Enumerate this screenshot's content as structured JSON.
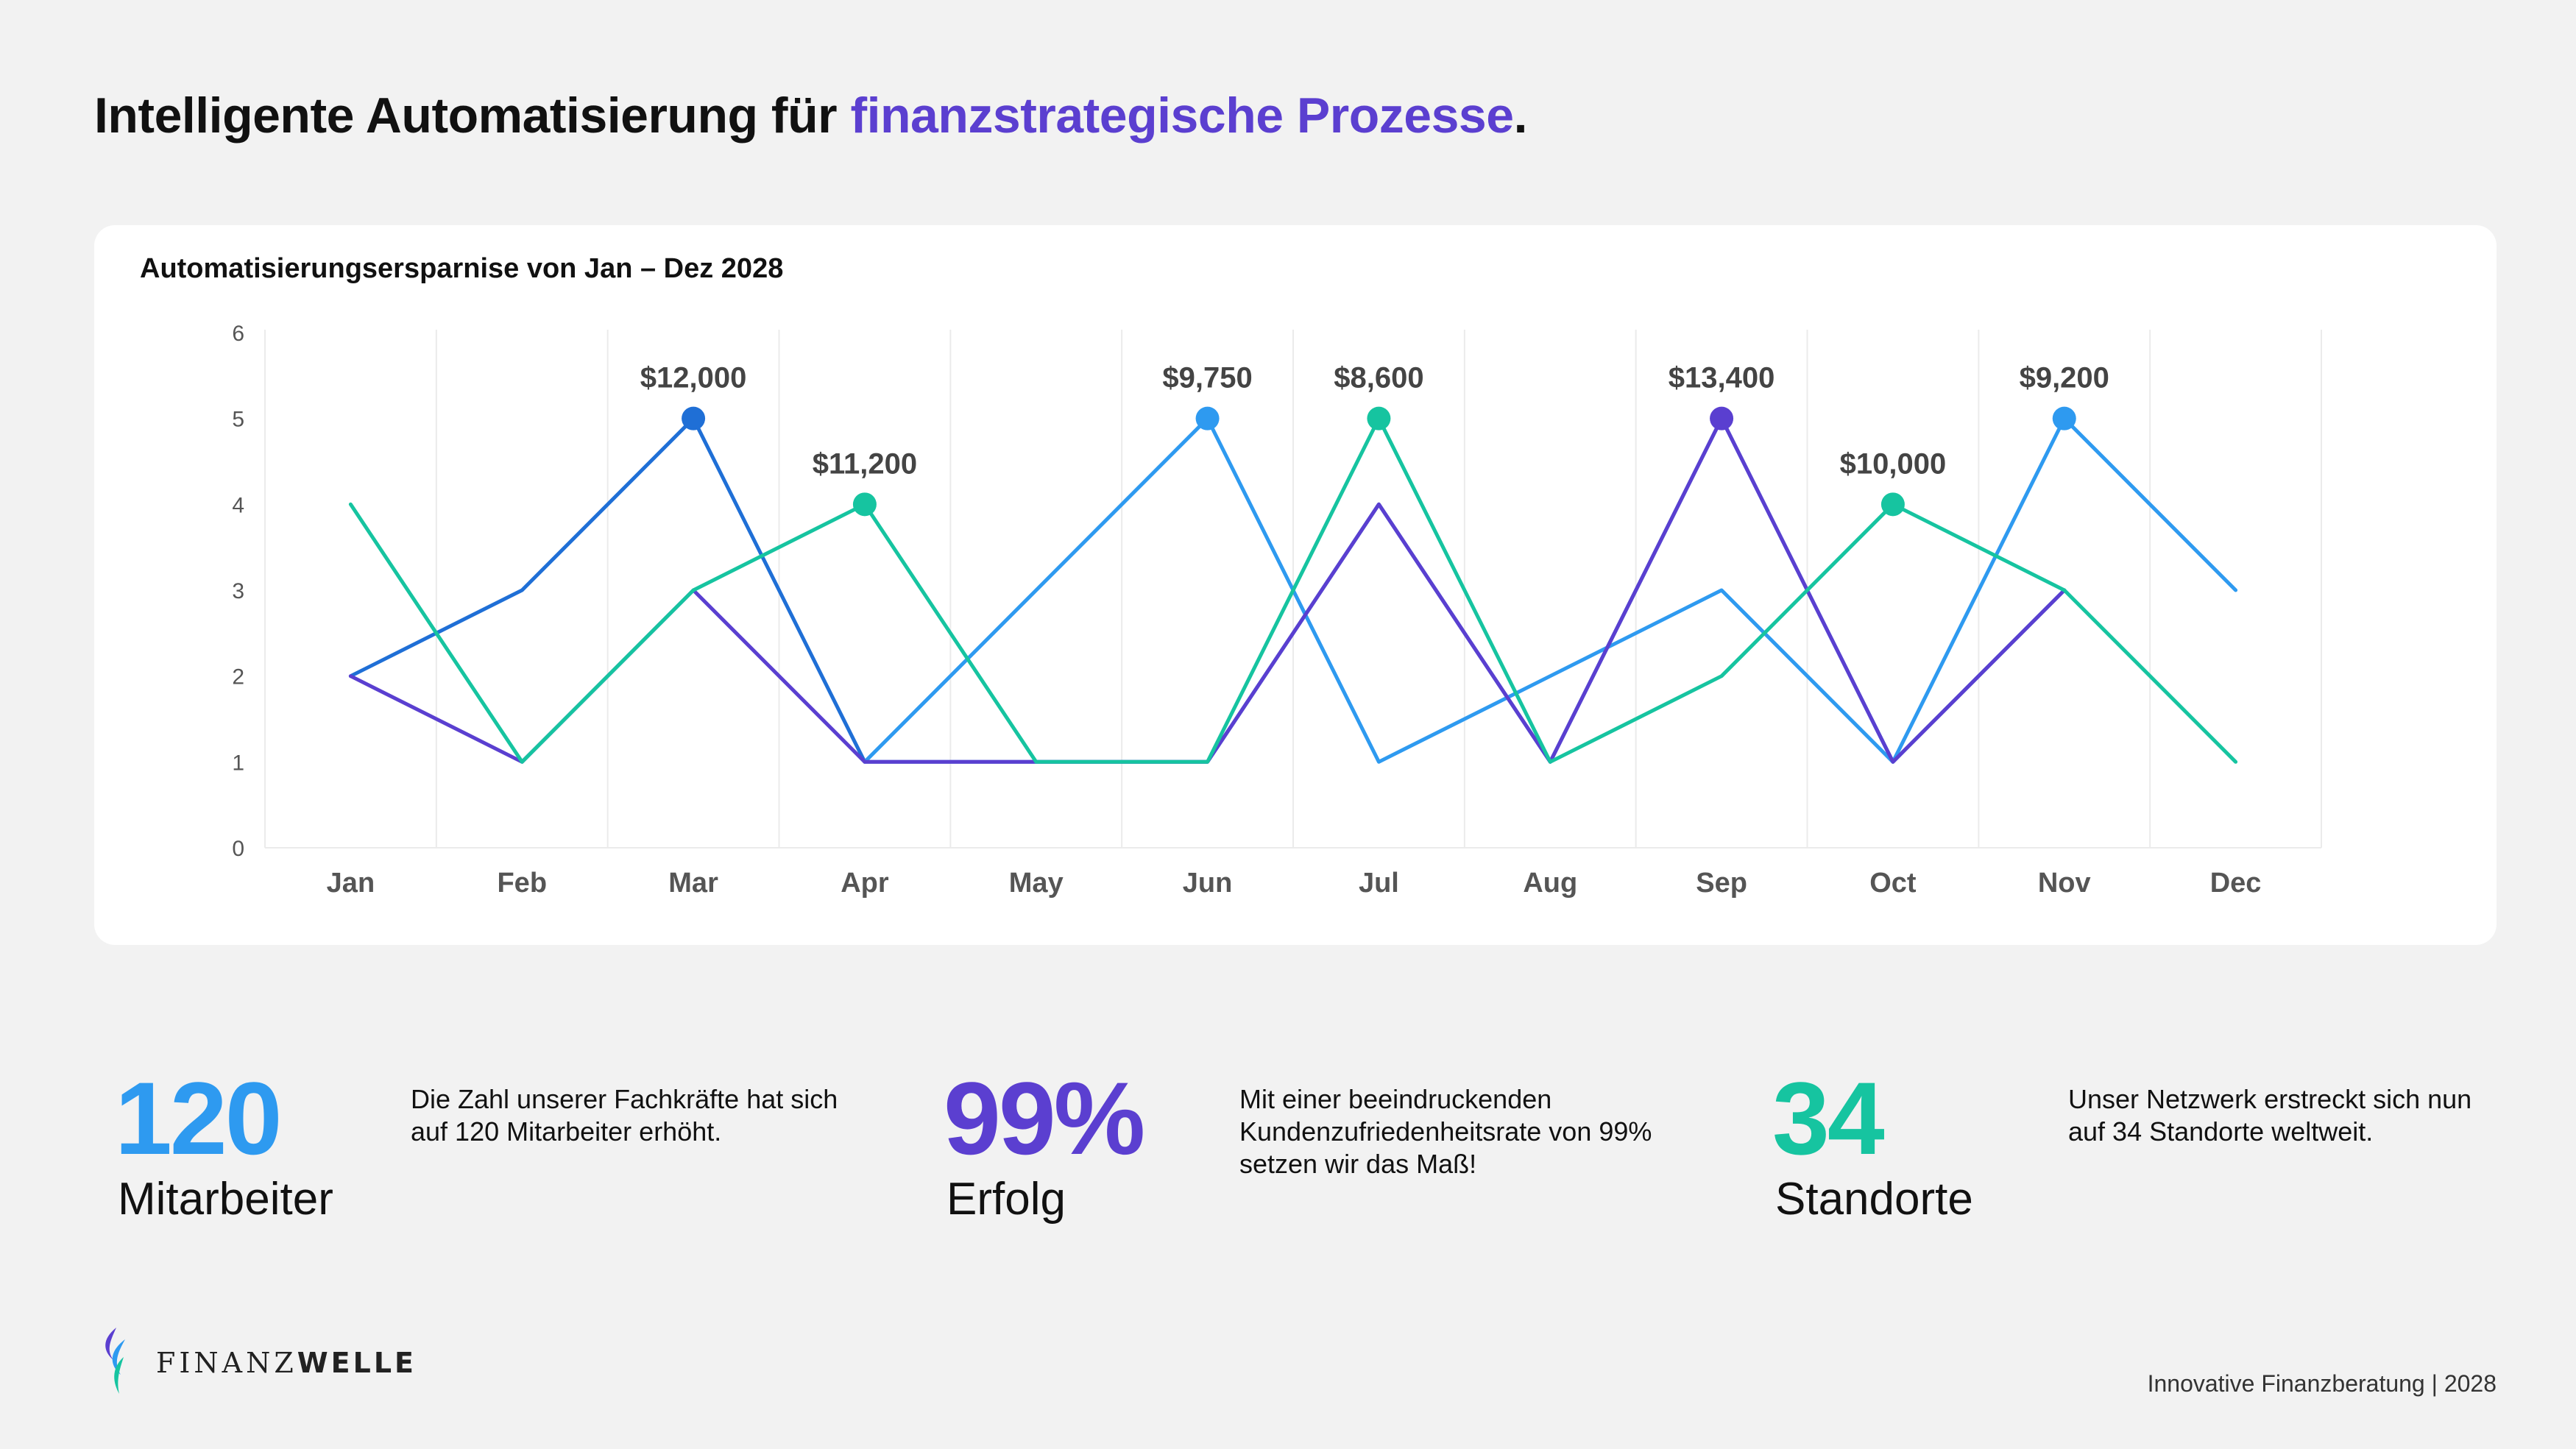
{
  "header": {
    "title_plain": "Intelligente Automatisierung für ",
    "title_accent": "finanzstrategische Prozesse",
    "title_end": "."
  },
  "colors": {
    "accent": "#5b3fd0",
    "blue": "#1f6fd6",
    "light_blue": "#2e9af0",
    "purple": "#5a3fd0",
    "teal": "#16c4a0",
    "grid": "#ebebeb",
    "tick": "#555555"
  },
  "chart_data": {
    "type": "line",
    "title": "Automatisierungsersparnise von Jan – Dez 2028",
    "categories": [
      "Jan",
      "Feb",
      "Mar",
      "Apr",
      "May",
      "Jun",
      "Jul",
      "Aug",
      "Sep",
      "Oct",
      "Nov",
      "Dec"
    ],
    "yticks": [
      "0",
      "1",
      "2",
      "3",
      "4",
      "5",
      "6"
    ],
    "ylim": [
      0,
      6
    ],
    "xlabel": "",
    "ylabel": "",
    "grid": "vertical",
    "series": [
      {
        "name": "blue",
        "color": "#1f6fd6",
        "values": [
          2,
          3,
          5,
          1,
          1,
          1,
          4,
          1,
          5,
          1,
          3,
          null
        ]
      },
      {
        "name": "light_blue",
        "color": "#2e9af0",
        "values": [
          null,
          null,
          null,
          1,
          3,
          5,
          1,
          2,
          3,
          1,
          5,
          3
        ]
      },
      {
        "name": "purple",
        "color": "#5a3fd0",
        "values": [
          2,
          1,
          3,
          1,
          1,
          1,
          4,
          1,
          5,
          1,
          3,
          null
        ]
      },
      {
        "name": "teal",
        "color": "#16c4a0",
        "values": [
          4,
          1,
          3,
          4,
          1,
          1,
          5,
          1,
          2,
          4,
          3,
          1
        ]
      }
    ],
    "annotations": [
      {
        "category": "Mar",
        "value": 5,
        "label": "$12,000",
        "color": "#1f6fd6"
      },
      {
        "category": "Apr",
        "value": 4,
        "label": "$11,200",
        "color": "#16c4a0"
      },
      {
        "category": "Jun",
        "value": 5,
        "label": "$9,750",
        "color": "#2e9af0"
      },
      {
        "category": "Jul",
        "value": 5,
        "label": "$8,600",
        "color": "#16c4a0"
      },
      {
        "category": "Sep",
        "value": 5,
        "label": "$13,400",
        "color": "#5a3fd0"
      },
      {
        "category": "Oct",
        "value": 4,
        "label": "$10,000",
        "color": "#16c4a0"
      },
      {
        "category": "Nov",
        "value": 5,
        "label": "$9,200",
        "color": "#2e9af0"
      }
    ]
  },
  "stats": [
    {
      "number": "120",
      "label": "Mitarbeiter",
      "color": "#2e9af0",
      "description": "Die Zahl unserer Fachkräfte hat sich auf 120 Mitarbeiter erhöht."
    },
    {
      "number": "99%",
      "label": "Erfolg",
      "color": "#5b3fd0",
      "description": "Mit einer beeindruckenden Kundenzufriedenheitsrate von 99% setzen wir das Maß!"
    },
    {
      "number": "34",
      "label": "Standorte",
      "color": "#16c4a0",
      "description": "Unser Netzwerk erstreckt sich nun auf 34 Standorte weltweit."
    }
  ],
  "logo": {
    "name_light": "FINANZ",
    "name_bold": "WELLE",
    "icon": "wave-flame-icon"
  },
  "footer": {
    "text": "Innovative Finanzberatung | 2028"
  }
}
